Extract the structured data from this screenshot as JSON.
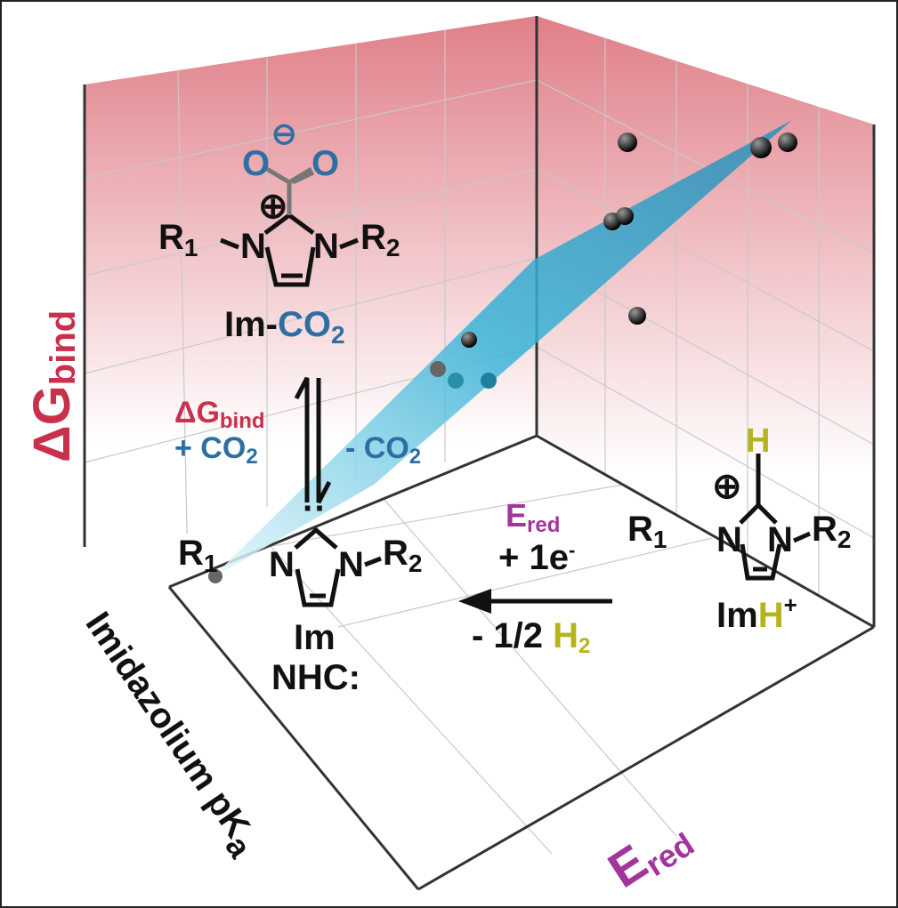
{
  "axes": {
    "z": {
      "main": "ΔG",
      "sub": "bind"
    },
    "x": {
      "main": "Imidazolium pK",
      "sub": "a"
    },
    "y": {
      "main": "E",
      "sub": "red"
    }
  },
  "molecules": {
    "adduct": {
      "oxygen": "O",
      "sign": "⊖",
      "cation": "⊕",
      "r1": "R",
      "r1_sub": "1",
      "n": "N",
      "r2": "R",
      "r2_sub": "2",
      "name": "Im-",
      "name_co": "CO",
      "name_sub": "2"
    },
    "carbene": {
      "r1": "R",
      "r1_sub": "1",
      "n": "N",
      "r2": "R",
      "r2_sub": "2",
      "lone_pair": "··",
      "name": "Im",
      "name2": "NHC:"
    },
    "cation": {
      "h": "H",
      "cation": "⊕",
      "r1": "R",
      "r1_sub": "1",
      "n": "N",
      "r2": "R",
      "r2_sub": "2",
      "name": "Im",
      "name_h": "H",
      "name_sup": "+"
    }
  },
  "reactions": {
    "bind": {
      "main": "ΔG",
      "sub": "bind"
    },
    "add_co2": {
      "main": "+ CO",
      "sub": "2"
    },
    "lose_co2": {
      "main": "- CO",
      "sub": "2"
    },
    "reduction": {
      "main": "E",
      "sub": "red"
    },
    "electron": {
      "main": "+ 1e",
      "sup": "-"
    },
    "hydrogen": {
      "main": "- 1/2 ",
      "h": "H",
      "sub": "2"
    }
  }
}
